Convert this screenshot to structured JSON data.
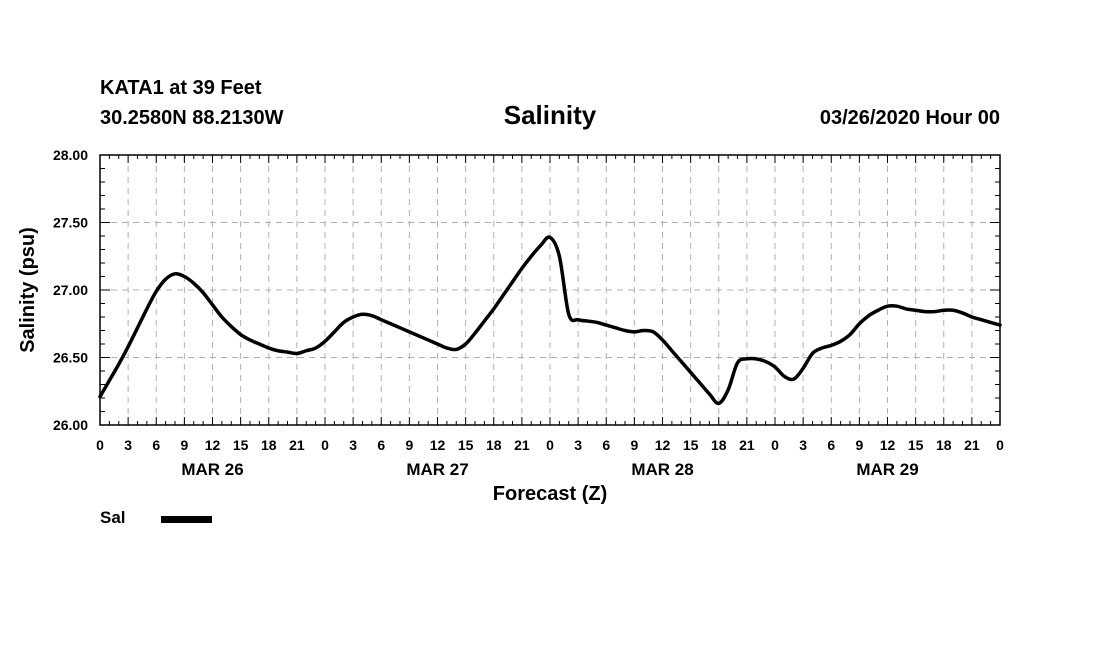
{
  "header": {
    "station_line": "KATA1 at 39 Feet",
    "coords_line": "30.2580N 88.2130W",
    "datetime_line": "03/26/2020 Hour 00"
  },
  "chart_data": {
    "type": "line",
    "title": "Salinity",
    "xlabel": "Forecast (Z)",
    "ylabel": "Salinity (psu)",
    "ylim": [
      26.0,
      28.0
    ],
    "xlim_hours": [
      0,
      96
    ],
    "y_ticks": [
      "26.00",
      "26.50",
      "27.00",
      "27.50",
      "28.00"
    ],
    "x_tick_labels": [
      "0",
      "3",
      "6",
      "9",
      "12",
      "15",
      "18",
      "21",
      "0",
      "3",
      "6",
      "9",
      "12",
      "15",
      "18",
      "21",
      "0",
      "3",
      "6",
      "9",
      "12",
      "15",
      "18",
      "21",
      "0",
      "3",
      "6",
      "9",
      "12",
      "15",
      "18",
      "21",
      "0"
    ],
    "day_labels": [
      {
        "label": "MAR 26",
        "center_hour": 12
      },
      {
        "label": "MAR 27",
        "center_hour": 36
      },
      {
        "label": "MAR 28",
        "center_hour": 60
      },
      {
        "label": "MAR 29",
        "center_hour": 84
      }
    ],
    "grid": true,
    "legend": "bottom-left",
    "series": [
      {
        "name": "Sal",
        "x_hours": [
          0,
          1,
          2,
          3,
          4,
          5,
          6,
          7,
          8,
          9,
          10,
          11,
          12,
          13,
          14,
          15,
          16,
          17,
          18,
          19,
          20,
          21,
          22,
          23,
          24,
          25,
          26,
          27,
          28,
          29,
          30,
          31,
          32,
          33,
          34,
          35,
          36,
          37,
          38,
          39,
          40,
          41,
          42,
          43,
          44,
          45,
          46,
          47,
          48,
          49,
          50,
          51,
          52,
          53,
          54,
          55,
          56,
          57,
          58,
          59,
          60,
          61,
          62,
          63,
          64,
          65,
          66,
          67,
          68,
          69,
          70,
          71,
          72,
          73,
          74,
          75,
          76,
          77,
          78,
          79,
          80,
          81,
          82,
          83,
          84,
          85,
          86,
          87,
          88,
          89,
          90,
          91,
          92,
          93,
          94,
          95,
          96
        ],
        "values": [
          26.21,
          26.33,
          26.45,
          26.58,
          26.72,
          26.86,
          26.99,
          27.08,
          27.12,
          27.1,
          27.05,
          26.98,
          26.89,
          26.8,
          26.73,
          26.67,
          26.63,
          26.6,
          26.57,
          26.55,
          26.54,
          26.53,
          26.55,
          26.57,
          26.62,
          26.69,
          26.76,
          26.8,
          26.82,
          26.81,
          26.78,
          26.75,
          26.72,
          26.69,
          26.66,
          26.63,
          26.6,
          26.57,
          26.56,
          26.6,
          26.68,
          26.77,
          26.86,
          26.96,
          27.06,
          27.16,
          27.25,
          27.33,
          27.39,
          27.25,
          26.82,
          26.78,
          26.77,
          26.76,
          26.74,
          26.72,
          26.7,
          26.69,
          26.7,
          26.69,
          26.63,
          26.55,
          26.47,
          26.39,
          26.31,
          26.23,
          26.16,
          26.26,
          26.46,
          26.49,
          26.49,
          26.47,
          26.43,
          26.36,
          26.34,
          26.42,
          26.53,
          26.57,
          26.59,
          26.62,
          26.67,
          26.75,
          26.81,
          26.85,
          26.88,
          26.88,
          26.86,
          26.85,
          26.84,
          26.84,
          26.85,
          26.85,
          26.83,
          26.8,
          26.78,
          26.76,
          26.74
        ],
        "color": "#000000"
      }
    ]
  }
}
